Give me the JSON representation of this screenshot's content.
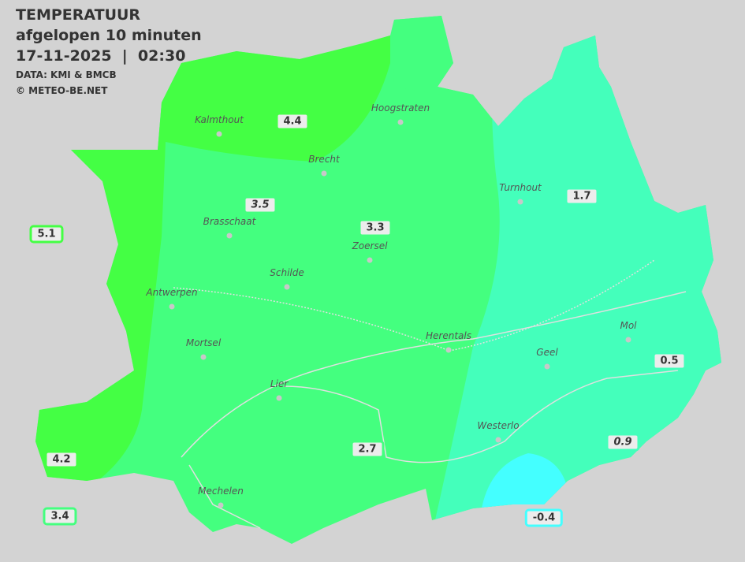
{
  "header": {
    "title": "TEMPERATUUR",
    "subtitle": "afgelopen 10 minuten",
    "datetime": "17-11-2025  |  02:30",
    "source": "DATA: KMI & BMCB",
    "copyright": "© METEO-BE.NET"
  },
  "colors": {
    "background": "#d3d3d3",
    "warm": "#44ff44",
    "mid": "#44ff7f",
    "cool": "#44ffbb",
    "cold": "#44ffff",
    "roads": "#e0e0e0"
  },
  "towns": [
    {
      "name": "Kalmthout"
    },
    {
      "name": "Hoogstraten"
    },
    {
      "name": "Brecht"
    },
    {
      "name": "Turnhout"
    },
    {
      "name": "Brasschaat"
    },
    {
      "name": "Zoersel"
    },
    {
      "name": "Schilde"
    },
    {
      "name": "Antwerpen"
    },
    {
      "name": "Mortsel"
    },
    {
      "name": "Herentals"
    },
    {
      "name": "Mol"
    },
    {
      "name": "Geel"
    },
    {
      "name": "Lier"
    },
    {
      "name": "Westerlo"
    },
    {
      "name": "Mechelen"
    }
  ],
  "readings": [
    {
      "value": "4.4",
      "color": "#44ff44"
    },
    {
      "value": "3.5",
      "color": "#44ff7f",
      "italic": true
    },
    {
      "value": "3.3",
      "color": "#44ff7f"
    },
    {
      "value": "1.7",
      "color": "#44ffbb"
    },
    {
      "value": "5.1",
      "color": "#44ff44"
    },
    {
      "value": "0.5",
      "color": "#44ffbb"
    },
    {
      "value": "0.9",
      "color": "#44ffbb",
      "italic": true
    },
    {
      "value": "2.7",
      "color": "#44ff7f"
    },
    {
      "value": "4.2",
      "color": "#44ff44"
    },
    {
      "value": "3.4",
      "color": "#44ff7f"
    },
    {
      "value": "-0.4",
      "color": "#44ffff"
    }
  ]
}
